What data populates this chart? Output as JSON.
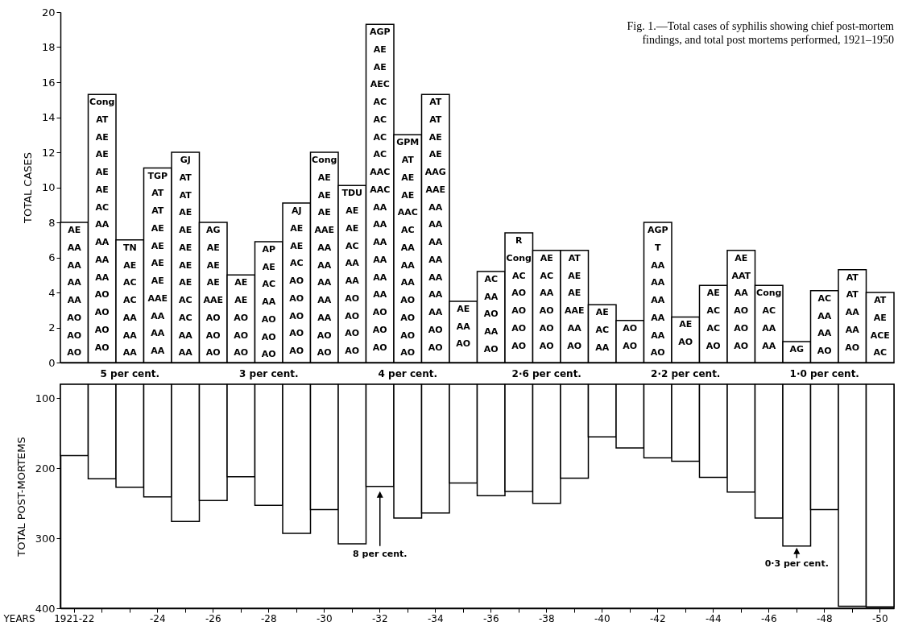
{
  "chart_data": [
    {
      "type": "bar",
      "title": "Fig. 1.—Total cases of syphilis showing chief post-mortem findings, and total post mortems performed, 1921–1950",
      "ylabel": "TOTAL CASES",
      "tick_labels": "y",
      "color": "#ffffff",
      "categories": [
        "1921-22",
        null,
        null,
        "-24",
        null,
        "-26",
        null,
        "-28",
        null,
        "-30",
        null,
        "-32",
        null,
        "-34",
        null,
        "-36",
        null,
        "-38",
        null,
        "-40",
        null,
        "-42",
        null,
        "-44",
        null,
        "-46",
        null,
        "-48",
        null,
        "-50"
      ],
      "values": [
        8.0,
        15.3,
        7.0,
        11.1,
        12.0,
        8.0,
        5.0,
        6.9,
        9.1,
        12.0,
        10.1,
        19.3,
        13.0,
        15.3,
        3.5,
        5.2,
        7.4,
        6.4,
        6.4,
        3.3,
        2.4,
        8.0,
        2.6,
        4.4,
        6.4,
        4.4,
        1.2,
        4.1,
        5.3,
        4.0
      ],
      "value_labels": [
        "AE\nAA\nAA\nAA\nAA\nAO\nAO\nAO",
        "Cong\nAT\nAE\nAE\nAE\nAE\nAC\nAA\nAA\nAA\nAA\nAO\nAO\nAO\nAO",
        "TN\nAE\nAC\nAC\nAA\nAA\nAA",
        "TGP\nAT\nAT\nAE\nAE\nAE\nAE\nAAE\nAA\nAA\nAA",
        "GJ\nAT\nAT\nAE\nAE\nAE\nAE\nAE\nAC\nAC\nAA\nAA",
        "AG\nAE\nAE\nAE\nAAE\nAO\nAO\nAO",
        "AE\nAE\nAO\nAO\nAO",
        "AP\nAE\nAC\nAA\nAO\nAO\nAO",
        "AJ\nAE\nAE\nAC\nAO\nAO\nAO\nAO\nAO",
        "Cong\nAE\nAE\nAE\nAAE\nAA\nAA\nAA\nAA\nAA\nAO\nAO",
        "TDU\nAE\nAE\nAC\nAA\nAA\nAO\nAO\nAO\nAO",
        "AGP\nAE\nAE\nAEC\nAC\nAC\nAC\nAC\nAAC\nAAC\nAA\nAA\nAA\nAA\nAA\nAA\nAO\nAO\nAO",
        "GPM\nAT\nAE\nAE\nAAC\nAC\nAA\nAA\nAA\nAO\nAO\nAO\nAO",
        "AT\nAT\nAE\nAE\nAAG\nAAE\nAA\nAA\nAA\nAA\nAA\nAA\nAA\nAO\nAO",
        "AE\nAA\nAO",
        "AC\nAA\nAO\nAA\nAO",
        "R\nCong\nAC\nAO\nAO\nAO\nAO",
        "AE\nAC\nAA\nAO\nAO\nAO",
        "AT\nAE\nAE\nAAE\nAA\nAO",
        "AE\nAC\nAA",
        "AO\nAO",
        "AGP\nT\nAA\nAA\nAA\nAA\nAA\nAO",
        "AE\nAO",
        "AE\nAC\nAC\nAO",
        "AE\nAAT\nAA\nAO\nAO\nAO",
        "Cong\nAC\nAA\nAA",
        "AG",
        "AC\nAA\nAA\nAO",
        "AT\nAT\nAA\nAA\nAO",
        "AT\nAE\nACE\nAC"
      ],
      "ylim": [
        0,
        20
      ],
      "yticks": [
        0,
        2,
        4,
        6,
        8,
        10,
        12,
        14,
        16,
        18,
        20
      ]
    },
    {
      "type": "bar",
      "ylabel": "TOTAL POST-MORTEMS",
      "xlabel": "YEARS",
      "color": "#ffffff",
      "categories": [
        "1921-22",
        null,
        null,
        "-24",
        null,
        "-26",
        null,
        "-28",
        null,
        "-30",
        null,
        "-32",
        null,
        "-34",
        null,
        "-36",
        null,
        "-38",
        null,
        "-40",
        null,
        "-42",
        null,
        "-44",
        null,
        "-46",
        null,
        "-48",
        null,
        "-50"
      ],
      "values": [
        182,
        215,
        227,
        241,
        276,
        246,
        212,
        253,
        293,
        259,
        308,
        226,
        271,
        264,
        221,
        239,
        233,
        250,
        214,
        155,
        171,
        185,
        190,
        213,
        234,
        271,
        311,
        259,
        397,
        398
      ],
      "ylim": [
        400,
        80
      ],
      "yticks": [
        100,
        200,
        300,
        400
      ],
      "annotations": [
        "5 per cent.",
        "3 per cent.",
        "4 per cent.",
        "2·6 per cent.",
        "2·2 per cent.",
        "1·0 per cent.",
        {
          "text": "8 per cent.",
          "x": "-32",
          "y": 226
        },
        "0·3 per cent."
      ]
    }
  ]
}
